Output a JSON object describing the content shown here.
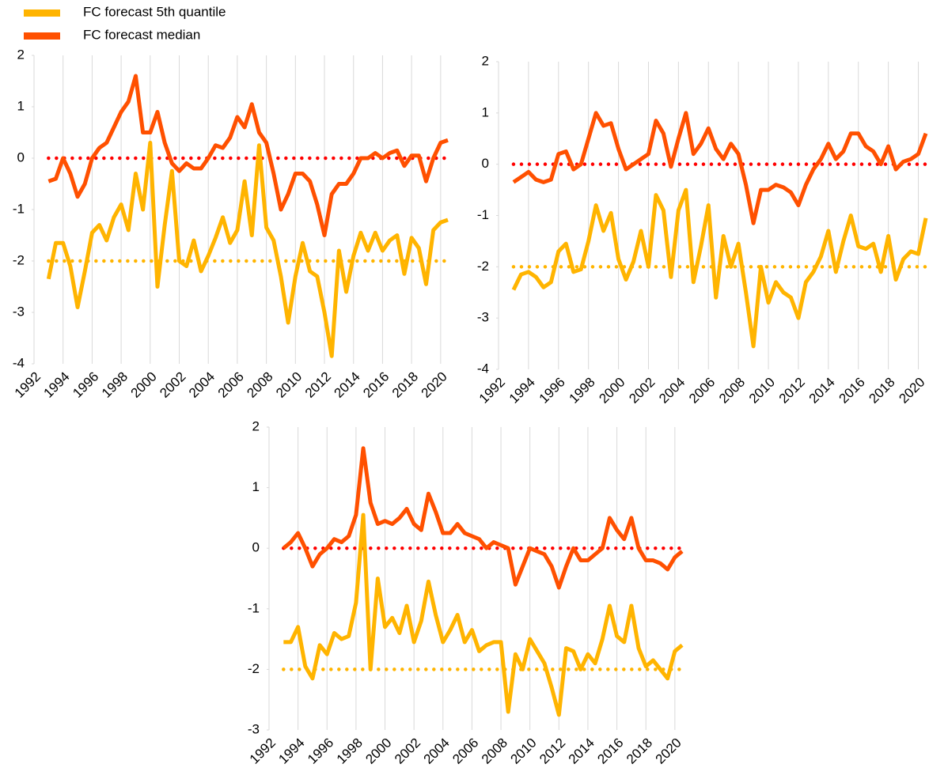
{
  "chart_data": [
    {
      "type": "line",
      "legend": "top-left",
      "x": [
        1993,
        1993.5,
        1994,
        1994.5,
        1995,
        1995.5,
        1996,
        1996.5,
        1997,
        1997.5,
        1998,
        1998.5,
        1999,
        1999.5,
        2000,
        2000.5,
        2001,
        2001.5,
        2002,
        2002.5,
        2003,
        2003.5,
        2004,
        2004.5,
        2005,
        2005.5,
        2006,
        2006.5,
        2007,
        2007.5,
        2008,
        2008.5,
        2009,
        2009.5,
        2010,
        2010.5,
        2011,
        2011.5,
        2012,
        2012.5,
        2013,
        2013.5,
        2014,
        2014.5,
        2015,
        2015.5,
        2016,
        2016.5,
        2017,
        2017.5,
        2018,
        2018.5,
        2019,
        2019.5,
        2020,
        2020.5
      ],
      "series": [
        {
          "name": "FC forecast 5th quantile",
          "color": "#ffb400",
          "values": [
            -2.35,
            -1.65,
            -1.65,
            -2.1,
            -2.9,
            -2.2,
            -1.45,
            -1.3,
            -1.6,
            -1.15,
            -0.9,
            -1.4,
            -0.3,
            -1.0,
            0.3,
            -2.5,
            -1.3,
            -0.25,
            -2.0,
            -2.1,
            -1.6,
            -2.2,
            -1.9,
            -1.55,
            -1.15,
            -1.65,
            -1.4,
            -0.45,
            -1.5,
            0.25,
            -1.35,
            -1.6,
            -2.3,
            -3.2,
            -2.3,
            -1.65,
            -2.2,
            -2.3,
            -3.0,
            -3.85,
            -1.8,
            -2.6,
            -1.9,
            -1.45,
            -1.8,
            -1.45,
            -1.8,
            -1.6,
            -1.5,
            -2.25,
            -1.55,
            -1.75,
            -2.45,
            -1.4,
            -1.25,
            -1.2
          ]
        },
        {
          "name": "FC forecast median",
          "color": "#ff5000",
          "values": [
            -0.45,
            -0.4,
            0.0,
            -0.3,
            -0.75,
            -0.5,
            0.0,
            0.2,
            0.3,
            0.6,
            0.9,
            1.1,
            1.6,
            0.5,
            0.5,
            0.9,
            0.3,
            -0.1,
            -0.25,
            -0.1,
            -0.2,
            -0.2,
            0.0,
            0.25,
            0.2,
            0.4,
            0.8,
            0.6,
            1.05,
            0.5,
            0.3,
            -0.3,
            -1.0,
            -0.7,
            -0.3,
            -0.3,
            -0.45,
            -0.9,
            -1.5,
            -0.7,
            -0.5,
            -0.5,
            -0.3,
            0.0,
            0.0,
            0.1,
            0.0,
            0.1,
            0.15,
            -0.15,
            0.05,
            0.05,
            -0.45,
            0.0,
            0.3,
            0.35
          ]
        }
      ],
      "reference_lines": [
        {
          "value": 0,
          "color": "#ff0000"
        },
        {
          "value": -2,
          "color": "#ffb400"
        }
      ],
      "xlim": [
        1992,
        2020.5
      ],
      "xticks": [
        1992,
        1994,
        1996,
        1998,
        2000,
        2002,
        2004,
        2006,
        2008,
        2010,
        2012,
        2014,
        2016,
        2018,
        2020
      ],
      "ylim": [
        -4,
        2
      ],
      "yticks": [
        -4,
        -3,
        -2,
        -1,
        0,
        1,
        2
      ],
      "grid": "x"
    },
    {
      "type": "line",
      "x": [
        1993,
        1993.5,
        1994,
        1994.5,
        1995,
        1995.5,
        1996,
        1996.5,
        1997,
        1997.5,
        1998,
        1998.5,
        1999,
        1999.5,
        2000,
        2000.5,
        2001,
        2001.5,
        2002,
        2002.5,
        2003,
        2003.5,
        2004,
        2004.5,
        2005,
        2005.5,
        2006,
        2006.5,
        2007,
        2007.5,
        2008,
        2008.5,
        2009,
        2009.5,
        2010,
        2010.5,
        2011,
        2011.5,
        2012,
        2012.5,
        2013,
        2013.5,
        2014,
        2014.5,
        2015,
        2015.5,
        2016,
        2016.5,
        2017,
        2017.5,
        2018,
        2018.5,
        2019,
        2019.5,
        2020,
        2020.5
      ],
      "series": [
        {
          "color": "#ffb400",
          "values": [
            -2.45,
            -2.15,
            -2.1,
            -2.2,
            -2.4,
            -2.3,
            -1.7,
            -1.55,
            -2.1,
            -2.05,
            -1.5,
            -0.8,
            -1.3,
            -0.95,
            -1.85,
            -2.25,
            -1.9,
            -1.3,
            -2.0,
            -0.6,
            -0.9,
            -2.2,
            -0.9,
            -0.5,
            -2.3,
            -1.6,
            -0.8,
            -2.6,
            -1.4,
            -2.0,
            -1.55,
            -2.5,
            -3.55,
            -2.0,
            -2.7,
            -2.3,
            -2.5,
            -2.6,
            -3.0,
            -2.3,
            -2.1,
            -1.8,
            -1.3,
            -2.1,
            -1.5,
            -1.0,
            -1.6,
            -1.65,
            -1.55,
            -2.1,
            -1.4,
            -2.25,
            -1.85,
            -1.7,
            -1.75,
            -1.05
          ]
        },
        {
          "color": "#ff5000",
          "values": [
            -0.35,
            -0.25,
            -0.15,
            -0.3,
            -0.35,
            -0.3,
            0.2,
            0.25,
            -0.1,
            0.0,
            0.5,
            1.0,
            0.75,
            0.8,
            0.3,
            -0.1,
            0.0,
            0.1,
            0.2,
            0.85,
            0.6,
            -0.05,
            0.5,
            1.0,
            0.2,
            0.4,
            0.7,
            0.3,
            0.1,
            0.4,
            0.2,
            -0.4,
            -1.15,
            -0.5,
            -0.5,
            -0.4,
            -0.45,
            -0.55,
            -0.8,
            -0.4,
            -0.1,
            0.1,
            0.4,
            0.1,
            0.25,
            0.6,
            0.6,
            0.35,
            0.25,
            0.0,
            0.35,
            -0.1,
            0.05,
            0.1,
            0.2,
            0.6
          ]
        }
      ],
      "reference_lines": [
        {
          "value": 0,
          "color": "#ff0000"
        },
        {
          "value": -2,
          "color": "#ffb400"
        }
      ],
      "xlim": [
        1992,
        2020.5
      ],
      "xticks": [
        1992,
        1994,
        1996,
        1998,
        2000,
        2002,
        2004,
        2006,
        2008,
        2010,
        2012,
        2014,
        2016,
        2018,
        2020
      ],
      "ylim": [
        -4,
        2
      ],
      "yticks": [
        -4,
        -3,
        -2,
        -1,
        0,
        1,
        2
      ],
      "grid": "x"
    },
    {
      "type": "line",
      "x": [
        1993,
        1993.5,
        1994,
        1994.5,
        1995,
        1995.5,
        1996,
        1996.5,
        1997,
        1997.5,
        1998,
        1998.5,
        1999,
        1999.5,
        2000,
        2000.5,
        2001,
        2001.5,
        2002,
        2002.5,
        2003,
        2003.5,
        2004,
        2004.5,
        2005,
        2005.5,
        2006,
        2006.5,
        2007,
        2007.5,
        2008,
        2008.5,
        2009,
        2009.5,
        2010,
        2010.5,
        2011,
        2011.5,
        2012,
        2012.5,
        2013,
        2013.5,
        2014,
        2014.5,
        2015,
        2015.5,
        2016,
        2016.5,
        2017,
        2017.5,
        2018,
        2018.5,
        2019,
        2019.5,
        2020,
        2020.5
      ],
      "series": [
        {
          "color": "#ffb400",
          "values": [
            -1.55,
            -1.55,
            -1.3,
            -1.95,
            -2.15,
            -1.6,
            -1.75,
            -1.4,
            -1.5,
            -1.45,
            -0.9,
            0.55,
            -2.0,
            -0.5,
            -1.3,
            -1.15,
            -1.4,
            -0.95,
            -1.55,
            -1.2,
            -0.55,
            -1.1,
            -1.55,
            -1.35,
            -1.1,
            -1.55,
            -1.35,
            -1.7,
            -1.6,
            -1.55,
            -1.55,
            -2.7,
            -1.75,
            -2.0,
            -1.5,
            -1.7,
            -1.9,
            -2.3,
            -2.75,
            -1.65,
            -1.7,
            -2.0,
            -1.75,
            -1.9,
            -1.5,
            -0.95,
            -1.45,
            -1.55,
            -0.95,
            -1.65,
            -1.95,
            -1.85,
            -2.0,
            -2.15,
            -1.7,
            -1.6
          ]
        },
        {
          "color": "#ff5000",
          "values": [
            0.0,
            0.1,
            0.25,
            0.0,
            -0.3,
            -0.1,
            0.0,
            0.15,
            0.1,
            0.2,
            0.55,
            1.65,
            0.75,
            0.4,
            0.45,
            0.4,
            0.5,
            0.65,
            0.4,
            0.3,
            0.9,
            0.6,
            0.25,
            0.25,
            0.4,
            0.25,
            0.2,
            0.15,
            0.0,
            0.1,
            0.05,
            0.0,
            -0.6,
            -0.3,
            0.0,
            -0.05,
            -0.1,
            -0.3,
            -0.65,
            -0.3,
            0.0,
            -0.2,
            -0.2,
            -0.1,
            0.0,
            0.5,
            0.3,
            0.15,
            0.5,
            0.0,
            -0.2,
            -0.2,
            -0.25,
            -0.35,
            -0.15,
            -0.05
          ]
        }
      ],
      "reference_lines": [
        {
          "value": 0,
          "color": "#ff0000"
        },
        {
          "value": -2,
          "color": "#ffb400"
        }
      ],
      "xlim": [
        1992,
        2020.5
      ],
      "xticks": [
        1992,
        1994,
        1996,
        1998,
        2000,
        2002,
        2004,
        2006,
        2008,
        2010,
        2012,
        2014,
        2016,
        2018,
        2020
      ],
      "ylim": [
        -3,
        2
      ],
      "yticks": [
        -3,
        -2,
        -1,
        0,
        1,
        2
      ],
      "grid": "x"
    }
  ]
}
